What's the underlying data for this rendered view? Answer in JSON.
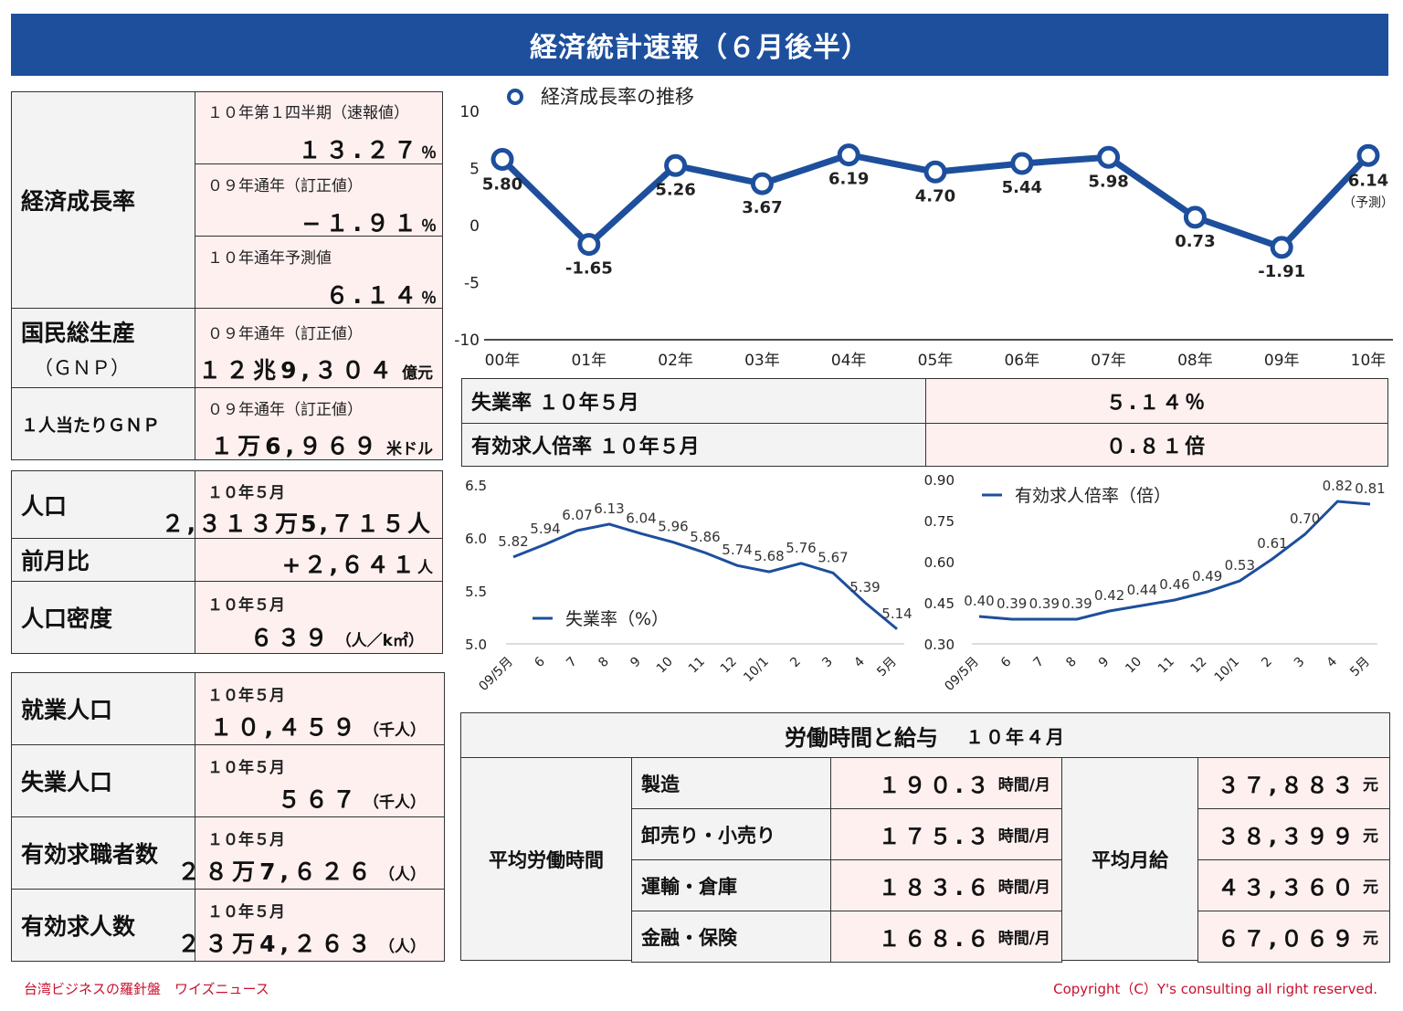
{
  "title": "経済統計速報（６月後半）",
  "left_block1": {
    "growth_label": "経済成長率",
    "growth_rows": [
      {
        "sub": "１０年第１四半期（速報値）",
        "value": "１３.２７",
        "unit": "％"
      },
      {
        "sub": "０９年通年（訂正値）",
        "value": "−１.９１",
        "unit": "％"
      },
      {
        "sub": "１０年通年予測値",
        "value": "６.１４",
        "unit": "％"
      }
    ],
    "gnp_label": "国民総生産",
    "gnp_label2": "（ＧＮＰ）",
    "gnp_sub": "０９年通年（訂正値）",
    "gnp_value": "１２兆9,３０４",
    "gnp_unit": "億元",
    "pc_label": "１人当たりＧＮＰ",
    "pc_sub": "０９年通年（訂正値）",
    "pc_value": "１万6,９６９",
    "pc_unit": "米ドル"
  },
  "left_block2": {
    "pop_label": "人口",
    "pop_sub": "１０年５月",
    "pop_value": "２,３１３万5,７１５人",
    "mom_label": "前月比",
    "mom_value": "+２,６４１",
    "mom_unit": "人",
    "density_label": "人口密度",
    "density_sub": "１０年５月",
    "density_value": "６３９",
    "density_unit": "（人／k㎡）"
  },
  "left_block3": {
    "rows": [
      {
        "label": "就業人口",
        "sub": "１０年５月",
        "value": "１０,４５９",
        "unit": "（千人）"
      },
      {
        "label": "失業人口",
        "sub": "１０年５月",
        "value": "５６７",
        "unit": "（千人）"
      },
      {
        "label": "有効求職者数",
        "sub": "１０年５月",
        "value": "２８万7,６２６",
        "unit": "（人）"
      },
      {
        "label": "有効求人数",
        "sub": "１０年５月",
        "value": "２３万4,２６３",
        "unit": "（人）"
      }
    ]
  },
  "mid_table": {
    "unemp_label": "失業率 １０年５月",
    "unemp_value": "５.１４％",
    "jobs_label": "有効求人倍率 １０年５月",
    "jobs_value": "０.８１倍"
  },
  "labor": {
    "title": "労働時間と給与",
    "title_period": "１０年４月",
    "hours_label": "平均労働時間",
    "salary_label": "平均月給",
    "rows": [
      {
        "industry": "製造",
        "hours": "１９０.３",
        "hours_unit": "時間/月",
        "salary": "３７,８８３",
        "salary_unit": "元"
      },
      {
        "industry": "卸売り・小売り",
        "hours": "１７５.３",
        "hours_unit": "時間/月",
        "salary": "３８,３９９",
        "salary_unit": "元"
      },
      {
        "industry": "運輸・倉庫",
        "hours": "１８３.６",
        "hours_unit": "時間/月",
        "salary": "４３,３６０",
        "salary_unit": "元"
      },
      {
        "industry": "金融・保険",
        "hours": "１６８.６",
        "hours_unit": "時間/月",
        "salary": "６７,０６９",
        "salary_unit": "元"
      }
    ]
  },
  "footer_left": "台湾ビジネスの羅針盤　ワイズニュース",
  "footer_right": "Copyright（C）Y's consulting all right reserved.",
  "colors": {
    "navy": "#1d4f9c",
    "pink": "#fdf0ef",
    "gray": "#f3f3f3",
    "footer": "#c8102e"
  },
  "chart_data": [
    {
      "type": "line",
      "legend": "経済成長率の推移",
      "legend_position": "top-left",
      "x": [
        "00年",
        "01年",
        "02年",
        "03年",
        "04年",
        "05年",
        "06年",
        "07年",
        "08年",
        "09年",
        "10年"
      ],
      "values": [
        5.8,
        -1.65,
        5.26,
        3.67,
        6.19,
        4.7,
        5.44,
        5.98,
        0.73,
        -1.91,
        6.14
      ],
      "labels": [
        "5.80",
        "-1.65",
        "5.26",
        "3.67",
        "6.19",
        "4.70",
        "5.44",
        "5.98",
        "0.73",
        "-1.91",
        "6.14"
      ],
      "ylim": [
        -10,
        10
      ],
      "yticks": [
        "10",
        "5",
        "0",
        "-5",
        "-10"
      ],
      "annotation": "（予測）",
      "color": "#1d4f9c",
      "markers": true,
      "grid": false
    },
    {
      "type": "line",
      "legend": "失業率（%）",
      "legend_position": "bottom-left",
      "x": [
        "09/5月",
        "6",
        "7",
        "8",
        "9",
        "10",
        "11",
        "12",
        "10/1",
        "2",
        "3",
        "4",
        "5月"
      ],
      "values": [
        5.82,
        5.94,
        6.07,
        6.13,
        6.04,
        5.96,
        5.86,
        5.74,
        5.68,
        5.76,
        5.67,
        5.39,
        5.14
      ],
      "labels": [
        "5.82",
        "5.94",
        "6.07",
        "6.13",
        "6.04",
        "5.96",
        "5.86",
        "5.74",
        "5.68",
        "5.76",
        "5.67",
        "5.39",
        "5.14"
      ],
      "ylim": [
        5.0,
        6.5
      ],
      "yticks": [
        "6.5",
        "6.0",
        "5.5",
        "5.0"
      ],
      "color": "#1d4f9c",
      "grid": false
    },
    {
      "type": "line",
      "legend": "有効求人倍率（倍）",
      "legend_position": "top-left",
      "x": [
        "09/5月",
        "6",
        "7",
        "8",
        "9",
        "10",
        "11",
        "12",
        "10/1",
        "2",
        "3",
        "4",
        "5月"
      ],
      "values": [
        0.4,
        0.39,
        0.39,
        0.39,
        0.42,
        0.44,
        0.46,
        0.49,
        0.53,
        0.61,
        0.7,
        0.82,
        0.81
      ],
      "labels": [
        "0.40",
        "0.39",
        "0.39",
        "0.39",
        "0.42",
        "0.44",
        "0.46",
        "0.49",
        "0.53",
        "0.61",
        "0.70",
        "0.82",
        "0.81"
      ],
      "ylim": [
        0.3,
        0.9
      ],
      "yticks": [
        "0.90",
        "0.75",
        "0.60",
        "0.45",
        "0.30"
      ],
      "color": "#1d4f9c",
      "grid": false
    }
  ]
}
